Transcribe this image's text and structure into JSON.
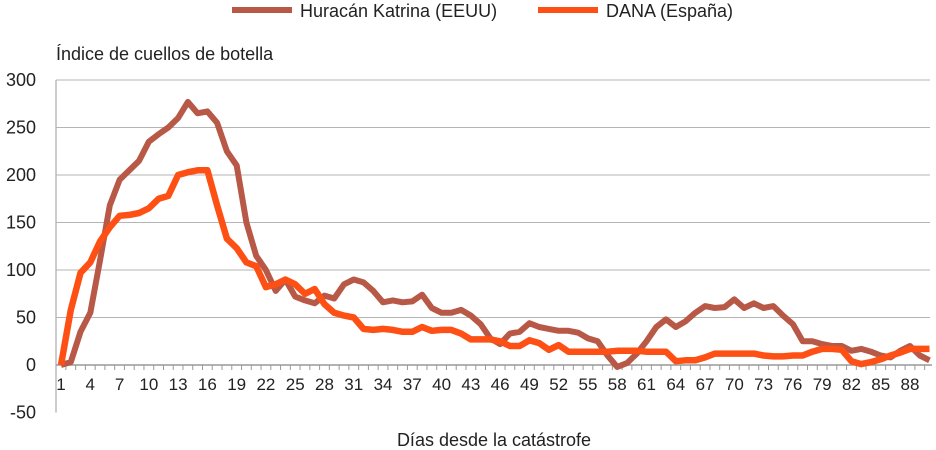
{
  "chart_data": {
    "type": "line",
    "title": "",
    "ylabel": "Índice de cuellos de botella",
    "xlabel": "Días desde la catástrofe",
    "ylim": [
      -50,
      300
    ],
    "yticks": [
      -50,
      0,
      50,
      100,
      150,
      200,
      250,
      300
    ],
    "xlim": [
      1,
      90
    ],
    "xticks": [
      1,
      4,
      7,
      10,
      13,
      16,
      19,
      22,
      25,
      28,
      31,
      34,
      37,
      40,
      43,
      46,
      49,
      52,
      55,
      58,
      61,
      64,
      67,
      70,
      73,
      76,
      79,
      82,
      85,
      88
    ],
    "grid": true,
    "legend": "top",
    "series": [
      {
        "name": "Huracán Katrina (EEUU)",
        "color": "#b85846",
        "values": [
          0,
          3,
          35,
          55,
          110,
          168,
          195,
          205,
          215,
          235,
          243,
          250,
          260,
          277,
          265,
          267,
          255,
          225,
          210,
          150,
          115,
          100,
          78,
          90,
          72,
          68,
          65,
          73,
          70,
          85,
          90,
          87,
          78,
          66,
          68,
          66,
          67,
          74,
          60,
          55,
          55,
          58,
          52,
          43,
          28,
          22,
          33,
          35,
          44,
          40,
          38,
          36,
          36,
          34,
          28,
          25,
          10,
          -2,
          2,
          12,
          25,
          40,
          48,
          40,
          46,
          55,
          62,
          60,
          61,
          69,
          60,
          65,
          60,
          62,
          52,
          43,
          25,
          25,
          22,
          20,
          20,
          15,
          17,
          14,
          10,
          8,
          15,
          20,
          10,
          5
        ]
      },
      {
        "name": "DANA (España)",
        "color": "#fe5014",
        "values": [
          0,
          58,
          97,
          108,
          130,
          145,
          157,
          158,
          160,
          165,
          175,
          178,
          200,
          203,
          205,
          205,
          168,
          133,
          123,
          108,
          104,
          82,
          85,
          90,
          85,
          75,
          80,
          64,
          55,
          52,
          50,
          38,
          37,
          38,
          37,
          35,
          35,
          40,
          36,
          37,
          37,
          33,
          27,
          27,
          27,
          25,
          20,
          20,
          26,
          23,
          16,
          21,
          14,
          14,
          14,
          14,
          14,
          15,
          15,
          15,
          14,
          14,
          14,
          4,
          5,
          5,
          8,
          12,
          12,
          12,
          12,
          12,
          10,
          9,
          9,
          10,
          10,
          14,
          17,
          17,
          16,
          4,
          1,
          3,
          6,
          10,
          13,
          17,
          17,
          17
        ]
      }
    ]
  }
}
